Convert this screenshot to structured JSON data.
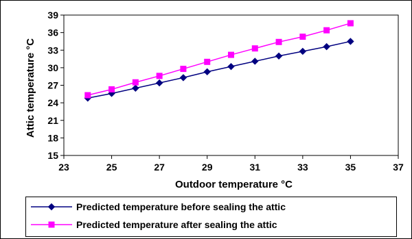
{
  "chart_data": {
    "type": "line",
    "title": "",
    "xlabel": "Outdoor temperature °C",
    "ylabel": "Attic temperature   °C",
    "xlim": [
      23,
      37
    ],
    "ylim": [
      15,
      39
    ],
    "xticks": [
      23,
      25,
      27,
      29,
      31,
      33,
      35,
      37
    ],
    "yticks": [
      15,
      18,
      21,
      24,
      27,
      30,
      33,
      36,
      39
    ],
    "grid": false,
    "legend_position": "bottom",
    "x": [
      24,
      25,
      26,
      27,
      28,
      29,
      30,
      31,
      32,
      33,
      34,
      35
    ],
    "series": [
      {
        "name": "Predicted temperature before sealing the attic",
        "color": "#000080",
        "marker": "diamond",
        "values": [
          24.8,
          25.6,
          26.5,
          27.4,
          28.3,
          29.3,
          30.2,
          31.1,
          32.0,
          32.8,
          33.6,
          34.5
        ]
      },
      {
        "name": "Predicted temperature after sealing the attic",
        "color": "#ff00ff",
        "marker": "square",
        "values": [
          25.3,
          26.3,
          27.5,
          28.6,
          29.8,
          31.0,
          32.2,
          33.3,
          34.4,
          35.3,
          36.4,
          37.6
        ]
      }
    ]
  }
}
